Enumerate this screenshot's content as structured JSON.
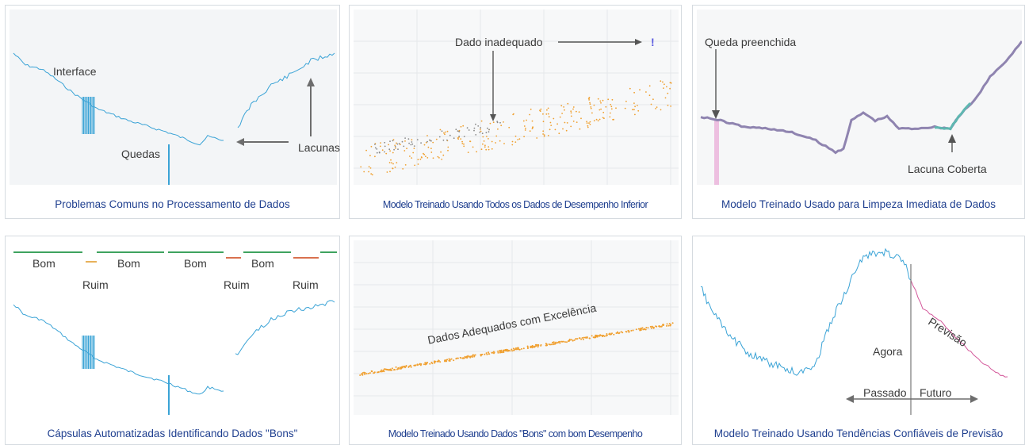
{
  "panels": [
    {
      "caption": "Problemas Comuns no Processamento de Dados",
      "labels": {
        "interface": "Interface",
        "quedas": "Quedas",
        "lacunas": "Lacunas"
      }
    },
    {
      "caption": "Modelo Treinado Usando Todos os Dados de Desempenho Inferior",
      "labels": {
        "dado_inadequado": "Dado inadequado",
        "exclaim": "!"
      }
    },
    {
      "caption": "Modelo Treinado Usado para Limpeza Imediata de Dados",
      "labels": {
        "queda_preenchida": "Queda preenchida",
        "lacuna_coberta": "Lacuna Coberta"
      }
    },
    {
      "caption": "Cápsulas Automatizadas Identificando Dados \"Bons\"",
      "labels": {
        "bom1": "Bom",
        "bom2": "Bom",
        "bom3": "Bom",
        "bom4": "Bom",
        "ruim1": "Ruim",
        "ruim2": "Ruim",
        "ruim3": "Ruim"
      }
    },
    {
      "caption": "Modelo Treinado Usando Dados \"Bons\" com bom Desempenho",
      "labels": {
        "dados_adequados": "Dados Adequados com Excelência"
      }
    },
    {
      "caption": "Modelo Treinado Usando Tendências Confiáveis de Previsão",
      "labels": {
        "previsao": "Previsão",
        "agora": "Agora",
        "passado": "Passado",
        "futuro": "Futuro"
      }
    }
  ],
  "colors": {
    "series_blue": "#3aa3d6",
    "scatter_orange": "#f0a030",
    "scatter_gray": "#8a8a8a",
    "cleaned_purple": "#8f84b0",
    "cleaned_teal": "#5fb7b1",
    "fill_pink": "#e79ad1",
    "forecast_pink": "#d3579a",
    "good_green": "#3ea35f",
    "bad_red": "#d9714f",
    "bad_orange": "#e8b15a",
    "caption_blue": "#1f3f8f"
  }
}
